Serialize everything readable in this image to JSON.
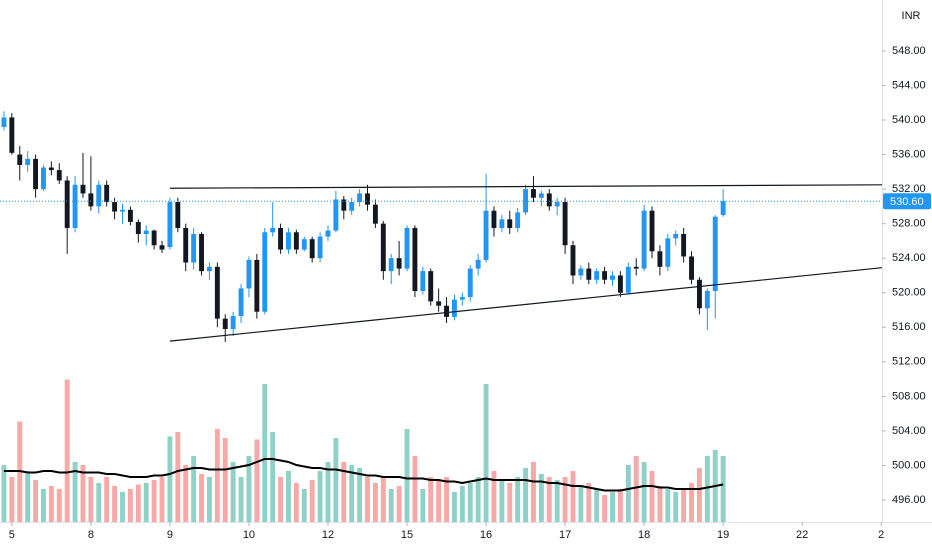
{
  "chart_data": {
    "type": "candlestick",
    "currency": "INR",
    "up_color": "#2196f3",
    "down_color": "#131722",
    "volume_up_color": "#8fd1c6",
    "volume_down_color": "#f7a9a7",
    "ma_color": "#000000",
    "trend_color": "#131722",
    "xlim": [
      -0.5,
      111.1
    ],
    "ylim": [
      493.45,
      553.9
    ],
    "yticks": [
      {
        "value": 496,
        "label": "496.00"
      },
      {
        "value": 500,
        "label": "500.00"
      },
      {
        "value": 504,
        "label": "504.00"
      },
      {
        "value": 508,
        "label": "508.00"
      },
      {
        "value": 512,
        "label": "512.00"
      },
      {
        "value": 516,
        "label": "516.00"
      },
      {
        "value": 520,
        "label": "520.00"
      },
      {
        "value": 524,
        "label": "524.00"
      },
      {
        "value": 528,
        "label": "528.00"
      },
      {
        "value": 532,
        "label": "532.00"
      },
      {
        "value": 536,
        "label": "536.00"
      },
      {
        "value": 540,
        "label": "540.00"
      },
      {
        "value": 544,
        "label": "544.00"
      },
      {
        "value": 548,
        "label": "548.00"
      }
    ],
    "xticks": [
      {
        "value": 1,
        "label": "5"
      },
      {
        "value": 11,
        "label": "8"
      },
      {
        "value": 21,
        "label": "9"
      },
      {
        "value": 31,
        "label": "10"
      },
      {
        "value": 41,
        "label": "12"
      },
      {
        "value": 51,
        "label": "15"
      },
      {
        "value": 61,
        "label": "16"
      },
      {
        "value": 71,
        "label": "17"
      },
      {
        "value": 81,
        "label": "18"
      },
      {
        "value": 91,
        "label": "19"
      },
      {
        "value": 101,
        "label": "22"
      },
      {
        "value": 111,
        "label": "2"
      }
    ],
    "last_price": {
      "value": 530.6,
      "label": "530.60"
    },
    "x": [
      0,
      1,
      2,
      3,
      4,
      5,
      6,
      7,
      8,
      9,
      10,
      11,
      12,
      13,
      14,
      15,
      16,
      17,
      18,
      19,
      20,
      21,
      22,
      23,
      24,
      25,
      26,
      27,
      28,
      29,
      30,
      31,
      32,
      33,
      34,
      35,
      36,
      37,
      38,
      39,
      40,
      41,
      42,
      43,
      44,
      45,
      46,
      47,
      48,
      49,
      50,
      51,
      52,
      53,
      54,
      55,
      56,
      57,
      58,
      59,
      60,
      61,
      62,
      63,
      64,
      65,
      66,
      67,
      68,
      69,
      70,
      71,
      72,
      73,
      74,
      75,
      76,
      77,
      78,
      79,
      80,
      81,
      82,
      83,
      84,
      85,
      86,
      87,
      88,
      89,
      90,
      91
    ],
    "ohlc": [
      [
        539.2,
        541,
        538.8,
        540.3
      ],
      [
        540.3,
        540.8,
        536,
        536.2
      ],
      [
        536,
        537,
        533,
        534.8
      ],
      [
        534.8,
        536.4,
        534,
        535.5
      ],
      [
        535.5,
        536,
        531,
        532
      ],
      [
        532,
        534.8,
        531.8,
        534.5
      ],
      [
        534.5,
        535.2,
        533.6,
        534.2
      ],
      [
        534.2,
        535,
        532.6,
        533
      ],
      [
        533,
        533.5,
        524.5,
        527.5
      ],
      [
        527.5,
        533.5,
        527,
        532.5
      ],
      [
        532.5,
        536.2,
        531,
        531.5
      ],
      [
        531.5,
        535.8,
        529.5,
        530
      ],
      [
        530,
        533,
        529.2,
        532.5
      ],
      [
        532.5,
        533,
        530,
        530.5
      ],
      [
        530.5,
        531,
        528.5,
        529.4
      ],
      [
        529.4,
        530.3,
        528,
        529.6
      ],
      [
        529.6,
        530,
        527.8,
        528.2
      ],
      [
        528.2,
        528.5,
        525.8,
        526.8
      ],
      [
        526.8,
        527.8,
        525.5,
        527.2
      ],
      [
        527.2,
        527.3,
        525,
        525.5
      ],
      [
        525.5,
        526,
        524.6,
        525
      ],
      [
        525.3,
        531,
        525,
        530.5
      ],
      [
        530.5,
        531,
        527,
        527.5
      ],
      [
        527.5,
        528,
        522.5,
        523.5
      ],
      [
        523.5,
        527.5,
        522.7,
        526.8
      ],
      [
        526.8,
        527,
        522,
        522.5
      ],
      [
        522.5,
        523.5,
        521.5,
        523
      ],
      [
        523,
        523.5,
        516,
        517
      ],
      [
        517,
        517.5,
        514.3,
        515.8
      ],
      [
        515.8,
        517.8,
        515,
        517.3
      ],
      [
        517.3,
        521,
        516.5,
        520.5
      ],
      [
        520.5,
        524.2,
        519.5,
        523.8
      ],
      [
        523.8,
        524.5,
        517,
        517.8
      ],
      [
        517.8,
        527.5,
        517.5,
        527
      ],
      [
        527,
        530.5,
        526.5,
        527.5
      ],
      [
        527.5,
        528,
        524.5,
        525
      ],
      [
        525,
        527.5,
        524.5,
        527
      ],
      [
        527,
        527.3,
        524.5,
        525
      ],
      [
        525,
        526.5,
        524.8,
        526.2
      ],
      [
        526.2,
        526.5,
        523.5,
        524
      ],
      [
        524,
        527,
        523.5,
        526.5
      ],
      [
        526.5,
        527.8,
        526,
        527.2
      ],
      [
        527.2,
        531.8,
        527,
        530.8
      ],
      [
        530.8,
        531.2,
        528.5,
        529.5
      ],
      [
        529.5,
        531,
        529,
        530.5
      ],
      [
        530.5,
        532,
        530,
        531.5
      ],
      [
        531.5,
        532.5,
        529.5,
        530.2
      ],
      [
        530.2,
        530.8,
        527.5,
        528
      ],
      [
        528,
        528.3,
        521.5,
        522.5
      ],
      [
        522.5,
        524.5,
        521,
        524
      ],
      [
        524,
        526,
        522,
        522.8
      ],
      [
        522.8,
        527.8,
        522.5,
        527.5
      ],
      [
        527.5,
        527.8,
        519.5,
        520.2
      ],
      [
        520.2,
        523,
        519.8,
        522.5
      ],
      [
        522.5,
        522.8,
        518.5,
        519
      ],
      [
        519,
        520.5,
        517.8,
        518.5
      ],
      [
        518.5,
        519.5,
        516.5,
        517.2
      ],
      [
        517.2,
        519.8,
        516.8,
        519.2
      ],
      [
        519.2,
        520,
        518.5,
        519.5
      ],
      [
        519.5,
        523.2,
        519,
        522.8
      ],
      [
        522.8,
        524.5,
        522,
        523.8
      ],
      [
        523.8,
        533.8,
        523.5,
        529.5
      ],
      [
        529.5,
        530,
        526.5,
        527.5
      ],
      [
        527.5,
        529,
        527,
        528.5
      ],
      [
        528.5,
        529.5,
        526.8,
        527.5
      ],
      [
        527.5,
        529.8,
        527,
        529.3
      ],
      [
        529.3,
        532.5,
        529,
        532
      ],
      [
        532,
        533.5,
        530.5,
        531
      ],
      [
        531,
        531.8,
        530,
        531.5
      ],
      [
        531.5,
        532,
        529.5,
        530
      ],
      [
        530,
        531,
        529,
        530.5
      ],
      [
        530.5,
        531,
        524.5,
        525.5
      ],
      [
        525.5,
        526,
        521,
        522
      ],
      [
        522,
        523.2,
        521.5,
        522.8
      ],
      [
        522.8,
        523.5,
        521,
        521.5
      ],
      [
        521.5,
        522.8,
        521,
        522.5
      ],
      [
        522.5,
        523,
        521,
        521.5
      ],
      [
        521.5,
        522.5,
        520.8,
        522
      ],
      [
        522,
        522.5,
        519.5,
        520
      ],
      [
        520,
        523.5,
        519.8,
        523
      ],
      [
        523,
        524,
        522,
        522.8
      ],
      [
        522.8,
        530.2,
        522.5,
        529.5
      ],
      [
        529.5,
        530,
        524,
        524.8
      ],
      [
        524.8,
        525.5,
        522,
        523
      ],
      [
        523,
        526.8,
        522.5,
        526.3
      ],
      [
        526.3,
        527.2,
        525.5,
        526.8
      ],
      [
        526.8,
        527.5,
        523.5,
        524.2
      ],
      [
        524.2,
        524.8,
        521,
        521.5
      ],
      [
        521.5,
        521.8,
        517.5,
        518.2
      ],
      [
        518.2,
        520.5,
        515.7,
        520.2
      ],
      [
        520.2,
        529,
        517,
        528.8
      ],
      [
        529,
        532,
        528.8,
        530.6
      ]
    ],
    "volume": [
      38,
      30,
      67,
      34,
      28,
      22,
      24,
      22,
      95,
      40,
      38,
      30,
      26,
      30,
      24,
      20,
      22,
      25,
      26,
      28,
      30,
      57,
      60,
      38,
      44,
      32,
      30,
      62,
      56,
      40,
      30,
      44,
      55,
      92,
      60,
      30,
      34,
      26,
      22,
      28,
      34,
      40,
      56,
      40,
      38,
      36,
      30,
      26,
      30,
      22,
      24,
      62,
      44,
      22,
      30,
      28,
      30,
      20,
      24,
      26,
      30,
      92,
      34,
      28,
      26,
      30,
      36,
      40,
      32,
      30,
      28,
      30,
      34,
      24,
      26,
      22,
      18,
      20,
      22,
      38,
      44,
      40,
      34,
      24,
      22,
      20,
      22,
      26,
      36,
      44,
      48,
      44
    ],
    "volume_ma": [
      34,
      34,
      34,
      33,
      33,
      34,
      34,
      33,
      33,
      34,
      33,
      33,
      33,
      32,
      32,
      31,
      30,
      30,
      30,
      31,
      31,
      32,
      34,
      35,
      36,
      36,
      35,
      35,
      35,
      36,
      37,
      38,
      40,
      42,
      42,
      41,
      40,
      38,
      37,
      36,
      36,
      35,
      35,
      34,
      33,
      32,
      31,
      31,
      30,
      30,
      30,
      29,
      29,
      29,
      28,
      28,
      27,
      27,
      26,
      27,
      28,
      29,
      28,
      28,
      28,
      28,
      28,
      27,
      27,
      26,
      26,
      25,
      24,
      24,
      23,
      22,
      21,
      21,
      21,
      22,
      23,
      24,
      24,
      23,
      23,
      22,
      22,
      22,
      22,
      23,
      24,
      25
    ],
    "trend_lines": [
      {
        "x": [
          21,
          111.1
        ],
        "y": [
          532.1,
          532.5
        ]
      },
      {
        "x": [
          21,
          111.1
        ],
        "y": [
          514.4,
          522.9
        ]
      }
    ]
  }
}
